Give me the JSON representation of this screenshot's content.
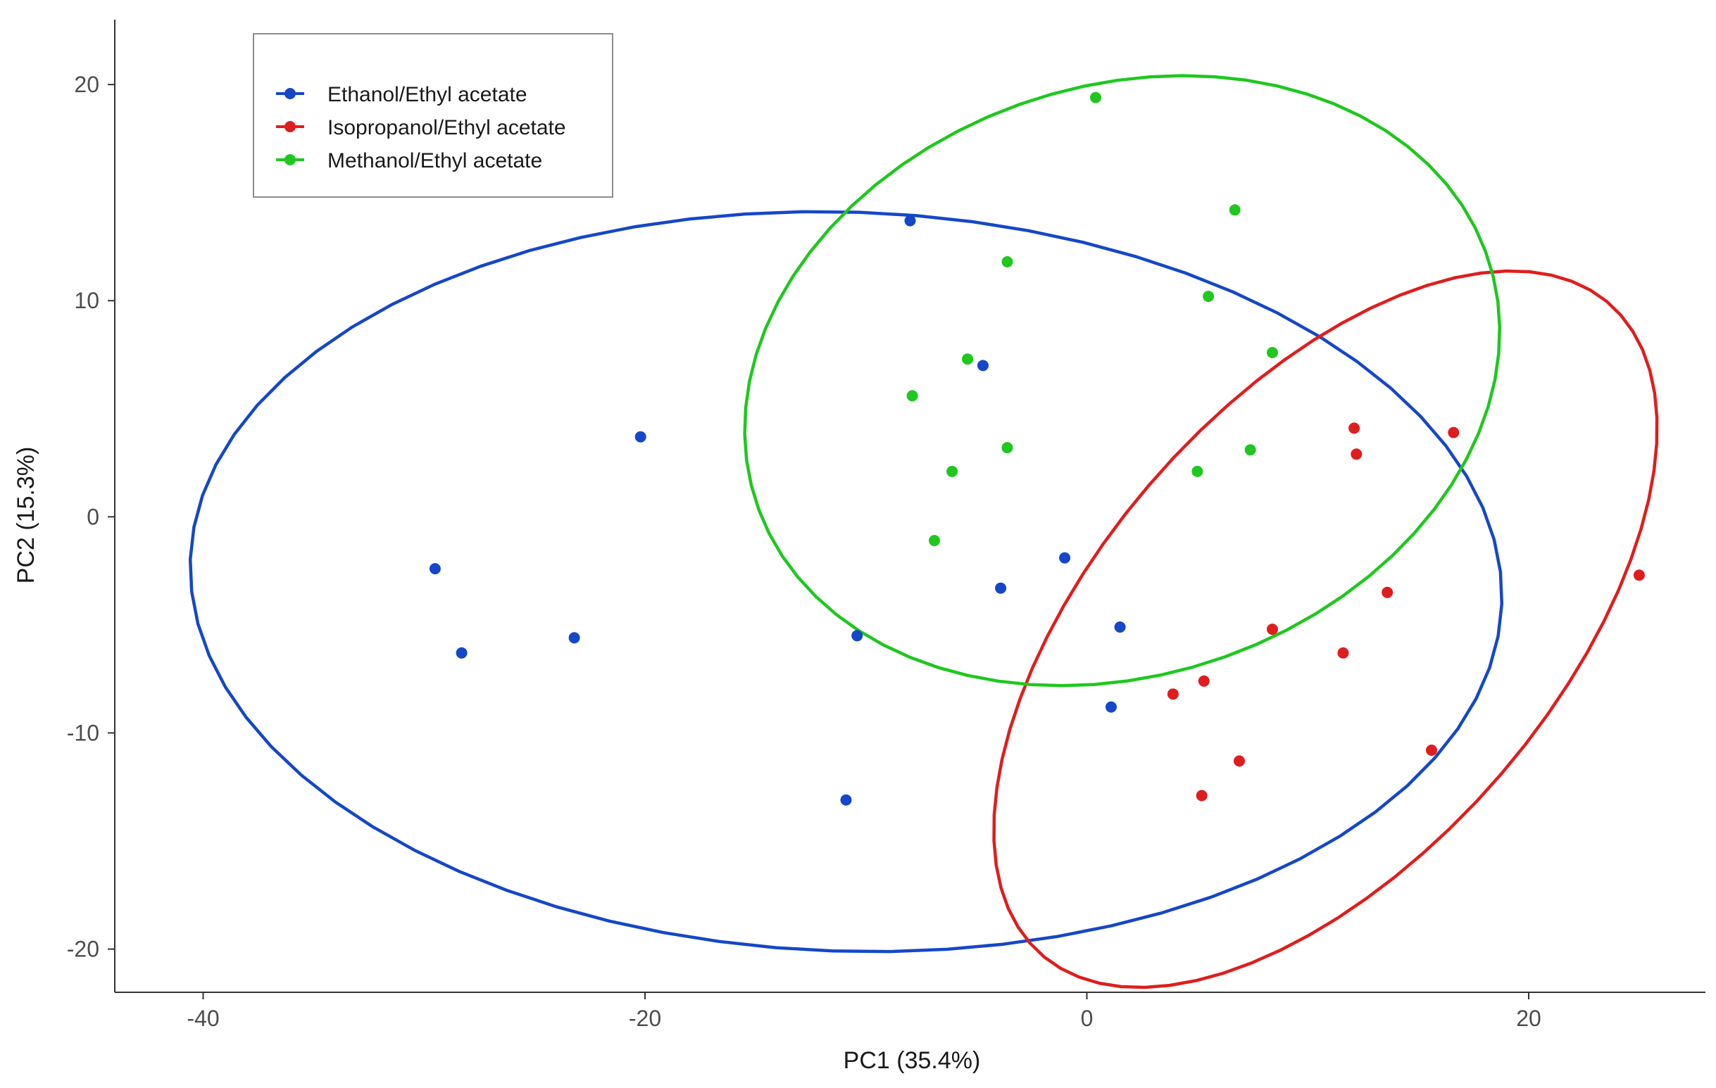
{
  "chart_data": {
    "type": "scatter",
    "title": "",
    "xlabel": "PC1 (35.4%)",
    "ylabel": "PC2 (15.3%)",
    "xlim": [
      -44,
      28
    ],
    "ylim": [
      -22,
      23
    ],
    "x_ticks": [
      -40,
      -20,
      0,
      20
    ],
    "y_ticks": [
      -20,
      -10,
      0,
      10,
      20
    ],
    "grid": false,
    "legend_position": "top-left",
    "series": [
      {
        "name": "Ethanol/Ethyl acetate",
        "color": "#1547c8",
        "points": [
          [
            -8,
            13.7
          ],
          [
            -4.7,
            7
          ],
          [
            -20.2,
            3.7
          ],
          [
            -29.5,
            -2.4
          ],
          [
            -28.3,
            -6.3
          ],
          [
            -23.2,
            -5.6
          ],
          [
            -10.4,
            -5.5
          ],
          [
            -3.9,
            -3.3
          ],
          [
            -1,
            -1.9
          ],
          [
            1.5,
            -5.1
          ],
          [
            1.1,
            -8.8
          ],
          [
            -10.9,
            -13.1
          ]
        ],
        "ellipse": {
          "center": [
            -10.9,
            -3
          ],
          "semi_axes": [
            29.7,
            17.1
          ],
          "angle_deg": -2
        }
      },
      {
        "name": "Isopropanol/Ethyl acetate",
        "color": "#e01d1d",
        "points": [
          [
            12.1,
            4.1
          ],
          [
            12.2,
            2.9
          ],
          [
            16.6,
            3.9
          ],
          [
            25,
            -2.7
          ],
          [
            13.6,
            -3.5
          ],
          [
            8.4,
            -5.2
          ],
          [
            11.6,
            -6.3
          ],
          [
            5.3,
            -7.6
          ],
          [
            3.9,
            -8.2
          ],
          [
            15.6,
            -10.8
          ],
          [
            6.9,
            -11.3
          ],
          [
            5.2,
            -12.9
          ]
        ],
        "ellipse": {
          "center": [
            10.8,
            -5.2
          ],
          "semi_axes": [
            19.8,
            10.4
          ],
          "angle_deg": 50
        }
      },
      {
        "name": "Methanol/Ethyl acetate",
        "color": "#1ec81e",
        "points": [
          [
            0.4,
            19.4
          ],
          [
            6.7,
            14.2
          ],
          [
            -3.6,
            11.8
          ],
          [
            5.5,
            10.2
          ],
          [
            8.4,
            7.6
          ],
          [
            -5.4,
            7.3
          ],
          [
            -7.9,
            5.6
          ],
          [
            -3.6,
            3.2
          ],
          [
            7.4,
            3.1
          ],
          [
            -6.1,
            2.1
          ],
          [
            5,
            2.1
          ],
          [
            -6.9,
            -1.1
          ]
        ],
        "ellipse": {
          "center": [
            1.6,
            6.3
          ],
          "semi_axes": [
            17.5,
            13.6
          ],
          "angle_deg": 20
        }
      }
    ]
  }
}
